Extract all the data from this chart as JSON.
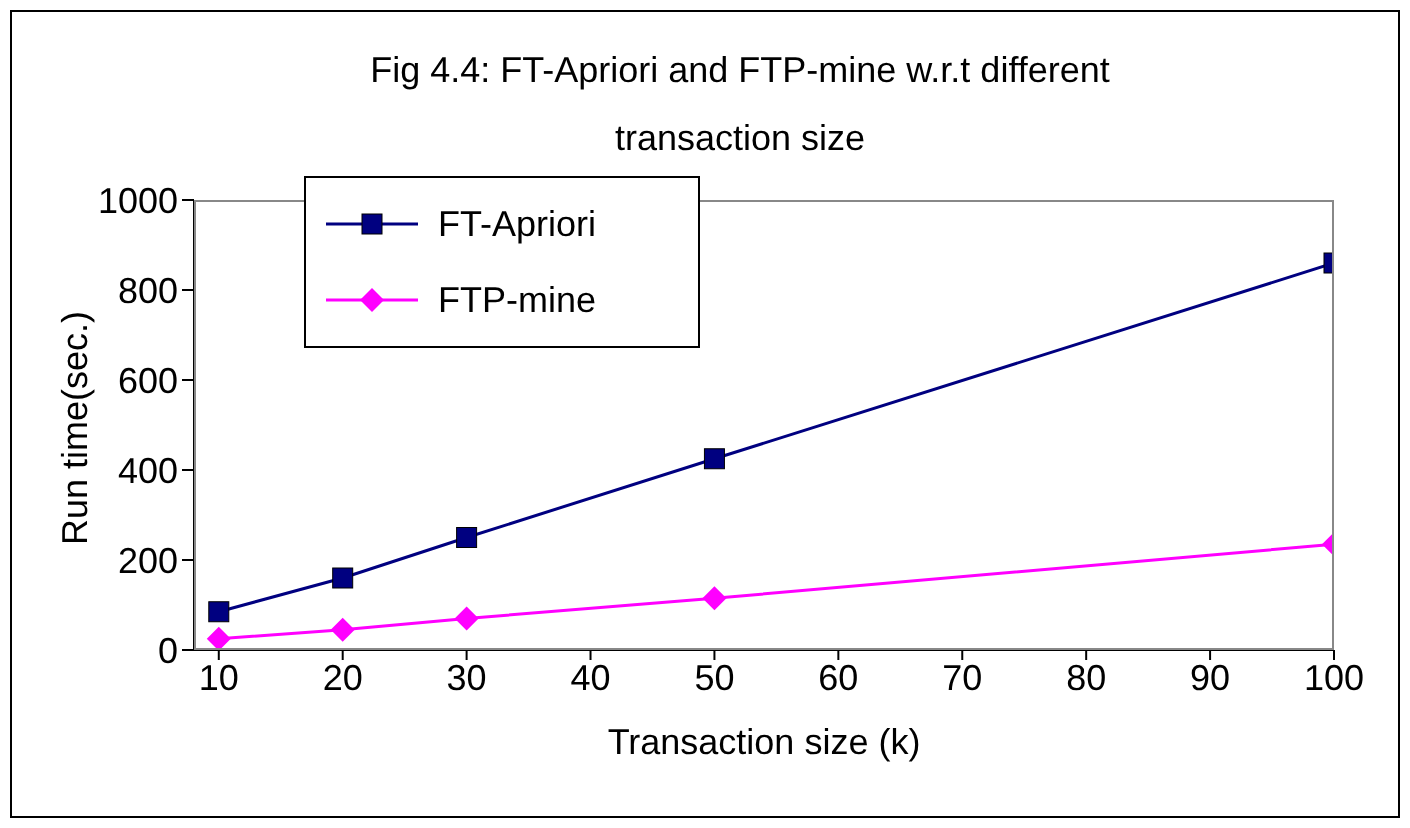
{
  "chart_data": {
    "type": "line",
    "title": "Fig 4.4: FT-Apriori and FTP-mine w.r.t different transaction size",
    "xlabel": "Transaction size (k)",
    "ylabel": "Run time(sec.)",
    "x": [
      10,
      20,
      30,
      50,
      100
    ],
    "series": [
      {
        "name": "FT-Apriori",
        "color": "#000080",
        "values": [
          85,
          160,
          250,
          425,
          860
        ],
        "marker": "square"
      },
      {
        "name": "FTP-mine",
        "color": "#ff00ff",
        "values": [
          25,
          45,
          70,
          115,
          235
        ],
        "marker": "diamond"
      }
    ],
    "xlim": [
      8,
      100
    ],
    "xticks": [
      10,
      20,
      30,
      40,
      50,
      60,
      70,
      80,
      90,
      100
    ],
    "ylim": [
      0,
      1000
    ],
    "yticks": [
      0,
      200,
      400,
      600,
      800,
      1000
    ],
    "grid": false,
    "legend": "top left",
    "line_style": "solid"
  }
}
